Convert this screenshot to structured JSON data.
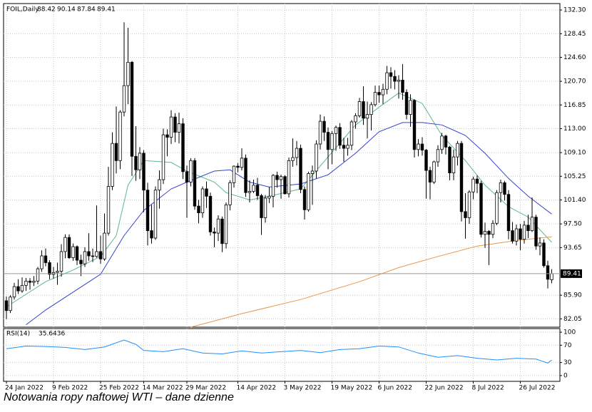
{
  "chart_data": {
    "type": "candlestick",
    "title": "FOIL,Daily",
    "caption": "Notowania ropy naftowej WTI – dane dzienne",
    "categories": [
      "24 Jan 2022",
      null,
      null,
      null,
      null,
      null,
      null,
      null,
      null,
      null,
      null,
      null,
      "9 Feb 2022",
      null,
      null,
      null,
      null,
      null,
      null,
      null,
      null,
      null,
      null,
      null,
      "25 Feb 2022",
      null,
      null,
      null,
      null,
      null,
      null,
      null,
      null,
      null,
      null,
      "14 Mar 2022",
      null,
      null,
      null,
      null,
      null,
      null,
      null,
      null,
      null,
      null,
      "29 Mar 2022",
      null,
      null,
      null,
      null,
      null,
      null,
      null,
      null,
      null,
      null,
      null,
      null,
      "14 Apr 2022",
      null,
      null,
      null,
      null,
      null,
      null,
      null,
      null,
      null,
      null,
      null,
      "3 May 2022",
      null,
      null,
      null,
      null,
      null,
      null,
      null,
      null,
      null,
      null,
      null,
      "19 May 2022",
      null,
      null,
      null,
      null,
      null,
      null,
      null,
      null,
      null,
      null,
      null,
      "6 Jun 2022",
      null,
      null,
      null,
      null,
      null,
      null,
      null,
      null,
      null,
      null,
      null,
      "22 Jun 2022",
      null,
      null,
      null,
      null,
      null,
      null,
      null,
      null,
      null,
      null,
      null,
      "8 Jul 2022",
      null,
      null,
      null,
      null,
      null,
      null,
      null,
      null,
      null,
      null,
      null,
      "26 Jul 2022",
      null,
      null,
      null,
      null,
      null,
      null,
      null,
      null
    ],
    "candles": [
      [
        85.0,
        85.7,
        82.0,
        83.4
      ],
      [
        83.4,
        85.9,
        83.0,
        85.6
      ],
      [
        85.6,
        87.9,
        85.2,
        87.3
      ],
      [
        87.3,
        88.5,
        86.1,
        86.6
      ],
      [
        86.6,
        88.8,
        86.3,
        87.5
      ],
      [
        87.5,
        88.7,
        86.6,
        88.2
      ],
      [
        88.2,
        88.7,
        86.8,
        88.0
      ],
      [
        88.0,
        89.0,
        87.4,
        88.2
      ],
      [
        88.2,
        90.5,
        87.7,
        90.2
      ],
      [
        90.2,
        93.2,
        89.7,
        92.3
      ],
      [
        92.3,
        93.5,
        90.6,
        91.2
      ],
      [
        91.2,
        91.6,
        88.5,
        89.3
      ],
      [
        89.3,
        90.5,
        88.6,
        89.6
      ],
      [
        89.6,
        91.2,
        87.6,
        89.8
      ],
      [
        89.8,
        94.2,
        88.9,
        93.0
      ],
      [
        93.0,
        95.8,
        91.9,
        95.3
      ],
      [
        95.3,
        95.8,
        91.8,
        92.0
      ],
      [
        92.0,
        94.3,
        91.5,
        93.8
      ],
      [
        93.8,
        94.0,
        90.8,
        91.6
      ],
      [
        91.6,
        92.5,
        89.0,
        91.0
      ],
      [
        91.0,
        93.7,
        90.5,
        93.0
      ],
      [
        93.0,
        96.0,
        91.5,
        92.3
      ],
      [
        92.3,
        93.5,
        91.3,
        92.2
      ],
      [
        92.2,
        100.5,
        92.0,
        93.0
      ],
      [
        93.0,
        95.6,
        91.0,
        91.8
      ],
      [
        91.8,
        99.2,
        91.5,
        96.0
      ],
      [
        96.0,
        106.8,
        95.6,
        103.6
      ],
      [
        103.6,
        112.4,
        103.0,
        110.6
      ],
      [
        110.6,
        116.6,
        105.7,
        107.8
      ],
      [
        107.8,
        116.0,
        106.4,
        115.7
      ],
      [
        115.7,
        130.3,
        115.0,
        120.0
      ],
      [
        120.0,
        129.4,
        117.0,
        123.8
      ],
      [
        123.8,
        124.0,
        105.3,
        108.5
      ],
      [
        108.5,
        113.4,
        104.5,
        106.3
      ],
      [
        106.3,
        110.0,
        104.8,
        109.0
      ],
      [
        109.0,
        109.5,
        99.4,
        103.0
      ],
      [
        103.0,
        104.2,
        94.0,
        96.4
      ],
      [
        96.4,
        100.6,
        94.3,
        95.2
      ],
      [
        95.2,
        103.6,
        94.9,
        103.0
      ],
      [
        103.0,
        106.2,
        100.0,
        104.7
      ],
      [
        104.7,
        113.0,
        104.0,
        112.0
      ],
      [
        112.0,
        112.9,
        108.5,
        111.6
      ],
      [
        111.6,
        116.0,
        110.5,
        114.9
      ],
      [
        114.9,
        115.5,
        110.8,
        112.4
      ],
      [
        112.4,
        115.6,
        110.6,
        113.8
      ],
      [
        113.8,
        114.7,
        104.8,
        106.0
      ],
      [
        106.0,
        107.0,
        98.5,
        104.3
      ],
      [
        104.3,
        108.2,
        103.6,
        107.8
      ],
      [
        107.8,
        108.2,
        99.8,
        100.4
      ],
      [
        100.4,
        101.4,
        97.6,
        99.3
      ],
      [
        99.3,
        103.6,
        98.5,
        103.2
      ],
      [
        103.2,
        104.4,
        100.1,
        102.0
      ],
      [
        102.0,
        102.6,
        95.6,
        96.2
      ],
      [
        96.2,
        96.9,
        93.7,
        96.0
      ],
      [
        96.0,
        98.9,
        94.7,
        98.3
      ],
      [
        98.3,
        98.7,
        92.9,
        94.3
      ],
      [
        94.3,
        101.0,
        93.5,
        100.6
      ],
      [
        100.6,
        104.6,
        99.7,
        104.2
      ],
      [
        104.2,
        107.0,
        103.4,
        106.9
      ],
      [
        106.9,
        107.4,
        105.9,
        106.7
      ],
      [
        106.7,
        109.8,
        106.2,
        108.2
      ],
      [
        108.2,
        108.8,
        101.9,
        102.6
      ],
      [
        102.6,
        104.6,
        101.0,
        102.8
      ],
      [
        102.8,
        104.7,
        102.5,
        103.8
      ],
      [
        103.8,
        105.0,
        101.4,
        102.1
      ],
      [
        102.1,
        102.4,
        95.7,
        98.5
      ],
      [
        98.5,
        102.2,
        97.7,
        101.7
      ],
      [
        101.7,
        103.5,
        100.9,
        102.0
      ],
      [
        102.0,
        105.6,
        100.2,
        105.4
      ],
      [
        105.4,
        106.0,
        103.4,
        104.7
      ],
      [
        104.7,
        105.5,
        101.6,
        105.2
      ],
      [
        105.2,
        105.4,
        102.3,
        102.4
      ],
      [
        102.4,
        108.3,
        101.8,
        107.8
      ],
      [
        107.8,
        111.4,
        106.8,
        108.3
      ],
      [
        108.3,
        111.0,
        107.0,
        109.8
      ],
      [
        109.8,
        110.4,
        102.5,
        103.1
      ],
      [
        103.1,
        103.6,
        98.2,
        99.8
      ],
      [
        99.8,
        106.0,
        99.5,
        105.7
      ],
      [
        105.7,
        107.0,
        100.6,
        106.1
      ],
      [
        106.1,
        111.1,
        104.9,
        110.5
      ],
      [
        110.5,
        115.3,
        109.6,
        114.2
      ],
      [
        114.2,
        115.0,
        111.0,
        112.4
      ],
      [
        112.4,
        113.2,
        106.4,
        109.6
      ],
      [
        109.6,
        112.6,
        107.2,
        112.2
      ],
      [
        112.2,
        113.5,
        109.4,
        113.2
      ],
      [
        113.2,
        113.9,
        109.7,
        110.3
      ],
      [
        110.3,
        111.5,
        107.6,
        109.8
      ],
      [
        109.8,
        111.5,
        108.6,
        110.3
      ],
      [
        110.3,
        114.4,
        109.5,
        114.1
      ],
      [
        114.1,
        115.5,
        113.0,
        115.1
      ],
      [
        115.1,
        118.0,
        114.8,
        117.4
      ],
      [
        117.4,
        119.9,
        113.6,
        114.7
      ],
      [
        114.7,
        117.4,
        111.4,
        115.3
      ],
      [
        115.3,
        117.3,
        112.7,
        116.9
      ],
      [
        116.9,
        120.0,
        116.6,
        118.9
      ],
      [
        118.9,
        120.0,
        117.2,
        118.5
      ],
      [
        118.5,
        120.3,
        117.0,
        119.4
      ],
      [
        119.4,
        123.2,
        118.6,
        122.1
      ],
      [
        122.1,
        123.0,
        119.5,
        121.5
      ],
      [
        121.5,
        122.5,
        119.4,
        120.7
      ],
      [
        120.7,
        121.7,
        117.9,
        120.9
      ],
      [
        120.9,
        123.5,
        117.7,
        118.9
      ],
      [
        118.9,
        119.4,
        114.5,
        115.3
      ],
      [
        115.3,
        118.6,
        113.3,
        117.6
      ],
      [
        117.6,
        117.8,
        108.3,
        109.6
      ],
      [
        109.6,
        111.3,
        108.5,
        110.5
      ],
      [
        110.5,
        111.6,
        108.6,
        109.5
      ],
      [
        109.5,
        109.7,
        101.6,
        106.2
      ],
      [
        106.2,
        106.8,
        101.5,
        104.3
      ],
      [
        104.3,
        107.8,
        104.0,
        107.6
      ],
      [
        107.6,
        110.3,
        106.8,
        109.6
      ],
      [
        109.6,
        112.3,
        108.9,
        111.8
      ],
      [
        111.8,
        112.0,
        108.8,
        110.0
      ],
      [
        110.0,
        110.2,
        104.6,
        105.8
      ],
      [
        105.8,
        109.6,
        104.6,
        108.4
      ],
      [
        108.4,
        111.0,
        107.0,
        110.6
      ],
      [
        110.6,
        111.0,
        97.9,
        99.5
      ],
      [
        99.5,
        102.5,
        95.1,
        98.5
      ],
      [
        98.5,
        103.0,
        97.5,
        102.7
      ],
      [
        102.7,
        105.2,
        101.5,
        104.8
      ],
      [
        104.8,
        105.4,
        102.5,
        104.1
      ],
      [
        104.1,
        104.5,
        95.3,
        95.8
      ],
      [
        95.8,
        97.7,
        93.6,
        96.3
      ],
      [
        96.3,
        96.5,
        90.8,
        95.8
      ],
      [
        95.8,
        98.1,
        95.2,
        97.6
      ],
      [
        97.6,
        103.0,
        97.3,
        102.6
      ],
      [
        102.6,
        104.7,
        101.0,
        104.2
      ],
      [
        104.2,
        104.5,
        101.3,
        102.3
      ],
      [
        102.3,
        103.0,
        95.0,
        96.4
      ],
      [
        96.4,
        97.8,
        94.3,
        94.7
      ],
      [
        94.7,
        97.4,
        94.0,
        96.7
      ],
      [
        96.7,
        97.5,
        93.2,
        95.0
      ],
      [
        95.0,
        98.0,
        94.3,
        97.3
      ],
      [
        97.3,
        99.0,
        95.2,
        96.4
      ],
      [
        96.4,
        101.8,
        96.2,
        98.6
      ],
      [
        98.6,
        99.0,
        93.3,
        93.9
      ],
      [
        93.9,
        95.3,
        92.4,
        94.4
      ],
      [
        94.4,
        95.0,
        90.4,
        90.7
      ],
      [
        90.7,
        91.5,
        87.0,
        88.5
      ],
      [
        88.42,
        90.14,
        87.84,
        89.41
      ]
    ],
    "series": [
      {
        "color": "#5cb88a",
        "x": [
          0,
          10,
          17,
          24,
          28,
          31,
          35,
          42,
          46,
          53,
          56,
          62,
          67,
          75,
          82,
          89,
          95,
          100,
          106,
          111,
          117,
          122,
          128,
          133,
          139
        ],
        "values": [
          84.0,
          88.1,
          90.0,
          92.2,
          95.6,
          103.8,
          107.8,
          107.5,
          106.1,
          104.3,
          102.6,
          101.4,
          102.0,
          103.2,
          108.4,
          113.6,
          116.5,
          118.8,
          117.1,
          111.9,
          107.8,
          103.8,
          100.3,
          98.6,
          94.5
        ]
      },
      {
        "color": "#3344cc",
        "x": [
          5,
          10,
          17,
          24,
          30,
          35,
          42,
          46,
          53,
          57,
          62,
          67,
          75,
          82,
          89,
          95,
          101,
          106,
          111,
          117,
          122,
          128,
          133,
          139
        ],
        "values": [
          81.1,
          83.5,
          86.4,
          89.3,
          95.6,
          99.7,
          103.2,
          104.3,
          106.1,
          106.3,
          104.3,
          103.5,
          104.0,
          105.5,
          109.0,
          112.5,
          114.0,
          114.0,
          113.6,
          111.9,
          109.0,
          104.9,
          102.0,
          99.1
        ]
      },
      {
        "color": "#e8964a",
        "x": [
          47,
          60,
          75,
          90,
          100,
          110,
          120,
          130,
          139
        ],
        "values": [
          80.7,
          82.9,
          85.2,
          88.1,
          90.4,
          92.2,
          93.9,
          94.8,
          95.4
        ]
      }
    ],
    "ylim": [
      80.7,
      133.35
    ],
    "yticks": [
      {
        "value": 132.3,
        "label": "132.30"
      },
      {
        "value": 128.45,
        "label": "128.45"
      },
      {
        "value": 124.6,
        "label": "124.60"
      },
      {
        "value": 120.7,
        "label": "120.70"
      },
      {
        "value": 116.85,
        "label": "116.85"
      },
      {
        "value": 113,
        "label": "113.00"
      },
      {
        "value": 109.1,
        "label": "109.10"
      },
      {
        "value": 105.25,
        "label": "105.25"
      },
      {
        "value": 101.4,
        "label": "101.40"
      },
      {
        "value": 97.5,
        "label": "97.50"
      },
      {
        "value": 93.65,
        "label": "93.65"
      },
      {
        "value": 85.9,
        "label": "85.90"
      },
      {
        "value": 82.05,
        "label": "82.05"
      }
    ],
    "grid": true,
    "rsi": {
      "name": "RSI(14)",
      "color": "#1e90ff",
      "x": [
        0,
        5,
        10,
        15,
        20,
        25,
        30,
        33,
        35,
        40,
        45,
        50,
        55,
        60,
        65,
        70,
        75,
        80,
        85,
        90,
        95,
        100,
        105,
        110,
        115,
        120,
        125,
        130,
        135,
        138,
        139
      ],
      "values": [
        62,
        68,
        67,
        65,
        60,
        66,
        82,
        72,
        58,
        55,
        62,
        52,
        50,
        57,
        52,
        55,
        58,
        53,
        60,
        62,
        68,
        66,
        52,
        42,
        46,
        40,
        36,
        40,
        38,
        29,
        35.6436
      ],
      "ylim": [
        -13.3,
        108.3
      ],
      "yticks": [
        100,
        70,
        30,
        0
      ]
    }
  }
}
